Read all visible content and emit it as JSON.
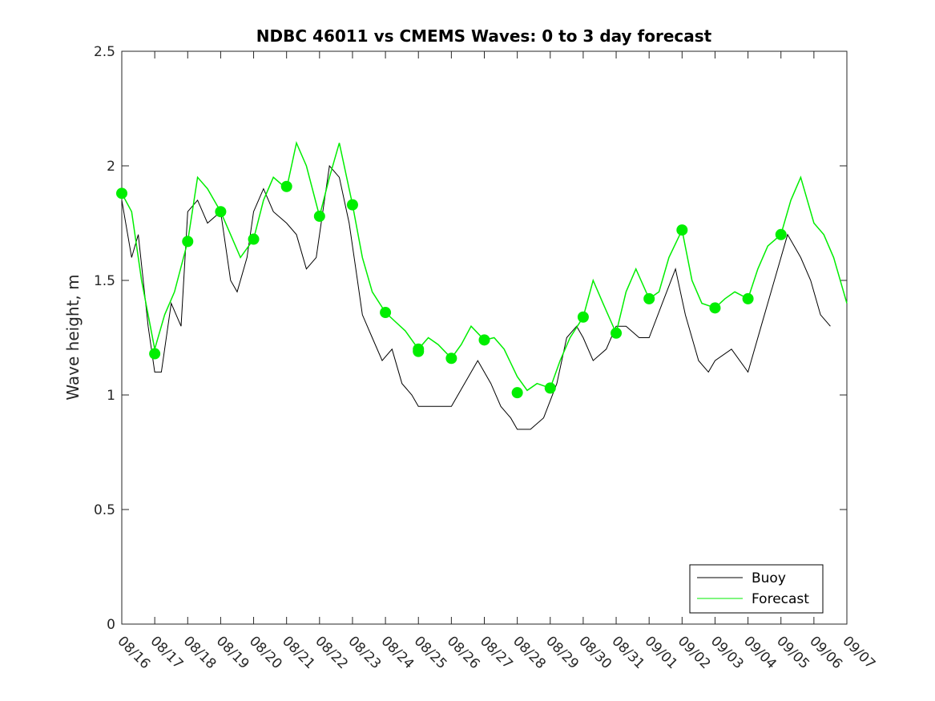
{
  "chart_data": {
    "type": "line",
    "title": "NDBC 46011 vs CMEMS Waves: 0 to 3 day forecast",
    "xlabel": "",
    "ylabel": "Wave height, m",
    "xlim": [
      0,
      22
    ],
    "ylim": [
      0,
      2.5
    ],
    "yticks": [
      0,
      0.5,
      1,
      1.5,
      2,
      2.5
    ],
    "ytick_labels": [
      "0",
      "0.5",
      "1",
      "1.5",
      "2",
      "2.5"
    ],
    "xtick_labels": [
      "08/16",
      "08/17",
      "08/18",
      "08/19",
      "08/20",
      "08/21",
      "08/22",
      "08/23",
      "08/24",
      "08/25",
      "08/26",
      "08/27",
      "08/28",
      "08/29",
      "08/30",
      "08/31",
      "09/01",
      "09/02",
      "09/03",
      "09/04",
      "09/05",
      "09/06",
      "09/07"
    ],
    "grid": false,
    "legend_position": "bottom-right",
    "colors": {
      "buoy": "#000000",
      "forecast": "#00ee00"
    },
    "series": [
      {
        "name": "Buoy",
        "x": [
          0,
          0.3,
          0.5,
          0.8,
          1.0,
          1.2,
          1.5,
          1.8,
          2.0,
          2.3,
          2.6,
          3.0,
          3.3,
          3.5,
          3.8,
          4.0,
          4.3,
          4.6,
          5.0,
          5.3,
          5.6,
          5.9,
          6.1,
          6.3,
          6.6,
          6.9,
          7.1,
          7.3,
          7.6,
          7.9,
          8.2,
          8.5,
          8.8,
          9.0,
          9.5,
          10.0,
          10.4,
          10.8,
          11.2,
          11.5,
          11.8,
          12.0,
          12.4,
          12.8,
          13.2,
          13.5,
          13.8,
          14.0,
          14.3,
          14.7,
          15.0,
          15.3,
          15.7,
          16.0,
          16.4,
          16.8,
          17.1,
          17.5,
          17.8,
          18.0,
          18.5,
          19.0,
          19.4,
          19.8,
          20.2,
          20.6,
          20.9,
          21.2,
          21.5
        ],
        "values": [
          1.85,
          1.6,
          1.7,
          1.3,
          1.1,
          1.1,
          1.4,
          1.3,
          1.8,
          1.85,
          1.75,
          1.8,
          1.5,
          1.45,
          1.6,
          1.8,
          1.9,
          1.8,
          1.75,
          1.7,
          1.55,
          1.6,
          1.8,
          2.0,
          1.95,
          1.75,
          1.55,
          1.35,
          1.25,
          1.15,
          1.2,
          1.05,
          1.0,
          0.95,
          0.95,
          0.95,
          1.05,
          1.15,
          1.05,
          0.95,
          0.9,
          0.85,
          0.85,
          0.9,
          1.05,
          1.25,
          1.3,
          1.25,
          1.15,
          1.2,
          1.3,
          1.3,
          1.25,
          1.25,
          1.4,
          1.55,
          1.35,
          1.15,
          1.1,
          1.15,
          1.2,
          1.1,
          1.3,
          1.5,
          1.7,
          1.6,
          1.5,
          1.35,
          1.3
        ]
      },
      {
        "name": "Forecast",
        "x": [
          0,
          0.3,
          0.6,
          1.0,
          1.3,
          1.6,
          2.0,
          2.3,
          2.6,
          3.0,
          3.3,
          3.6,
          4.0,
          4.3,
          4.6,
          5.0,
          5.3,
          5.6,
          6.0,
          6.3,
          6.6,
          7.0,
          7.3,
          7.6,
          8.0,
          8.3,
          8.6,
          9.0,
          9.3,
          9.6,
          10.0,
          10.3,
          10.6,
          11.0,
          11.3,
          11.6,
          12.0,
          12.3,
          12.6,
          13.0,
          13.3,
          13.6,
          14.0,
          14.3,
          14.6,
          15.0,
          15.3,
          15.6,
          16.0,
          16.3,
          16.6,
          17.0,
          17.3,
          17.6,
          18.0,
          18.3,
          18.6,
          19.0,
          19.3,
          19.6,
          20.0,
          20.3,
          20.6,
          21.0,
          21.3,
          21.6,
          22.0
        ],
        "values": [
          1.88,
          1.8,
          1.5,
          1.2,
          1.35,
          1.45,
          1.67,
          1.95,
          1.9,
          1.8,
          1.7,
          1.6,
          1.68,
          1.85,
          1.95,
          1.9,
          2.1,
          2.0,
          1.78,
          1.95,
          2.1,
          1.83,
          1.6,
          1.45,
          1.36,
          1.32,
          1.28,
          1.2,
          1.25,
          1.22,
          1.16,
          1.22,
          1.3,
          1.24,
          1.25,
          1.2,
          1.08,
          1.02,
          1.05,
          1.03,
          1.15,
          1.25,
          1.34,
          1.5,
          1.4,
          1.27,
          1.45,
          1.55,
          1.42,
          1.45,
          1.6,
          1.72,
          1.5,
          1.4,
          1.38,
          1.42,
          1.45,
          1.42,
          1.55,
          1.65,
          1.7,
          1.85,
          1.95,
          1.75,
          1.7,
          1.6,
          1.4
        ]
      }
    ],
    "markers": {
      "name": "Forecast start points",
      "x": [
        0,
        1,
        2,
        3,
        4,
        5,
        6,
        7,
        8,
        9,
        9,
        10,
        11,
        12,
        13,
        14,
        15,
        16,
        17,
        18,
        19,
        20
      ],
      "values": [
        1.88,
        1.18,
        1.67,
        1.8,
        1.68,
        1.91,
        1.78,
        1.83,
        1.36,
        1.2,
        1.19,
        1.16,
        1.24,
        1.01,
        1.03,
        1.34,
        1.27,
        1.42,
        1.72,
        1.38,
        1.42,
        1.7
      ]
    },
    "legend": {
      "buoy_label": "Buoy",
      "forecast_label": "Forecast"
    }
  }
}
